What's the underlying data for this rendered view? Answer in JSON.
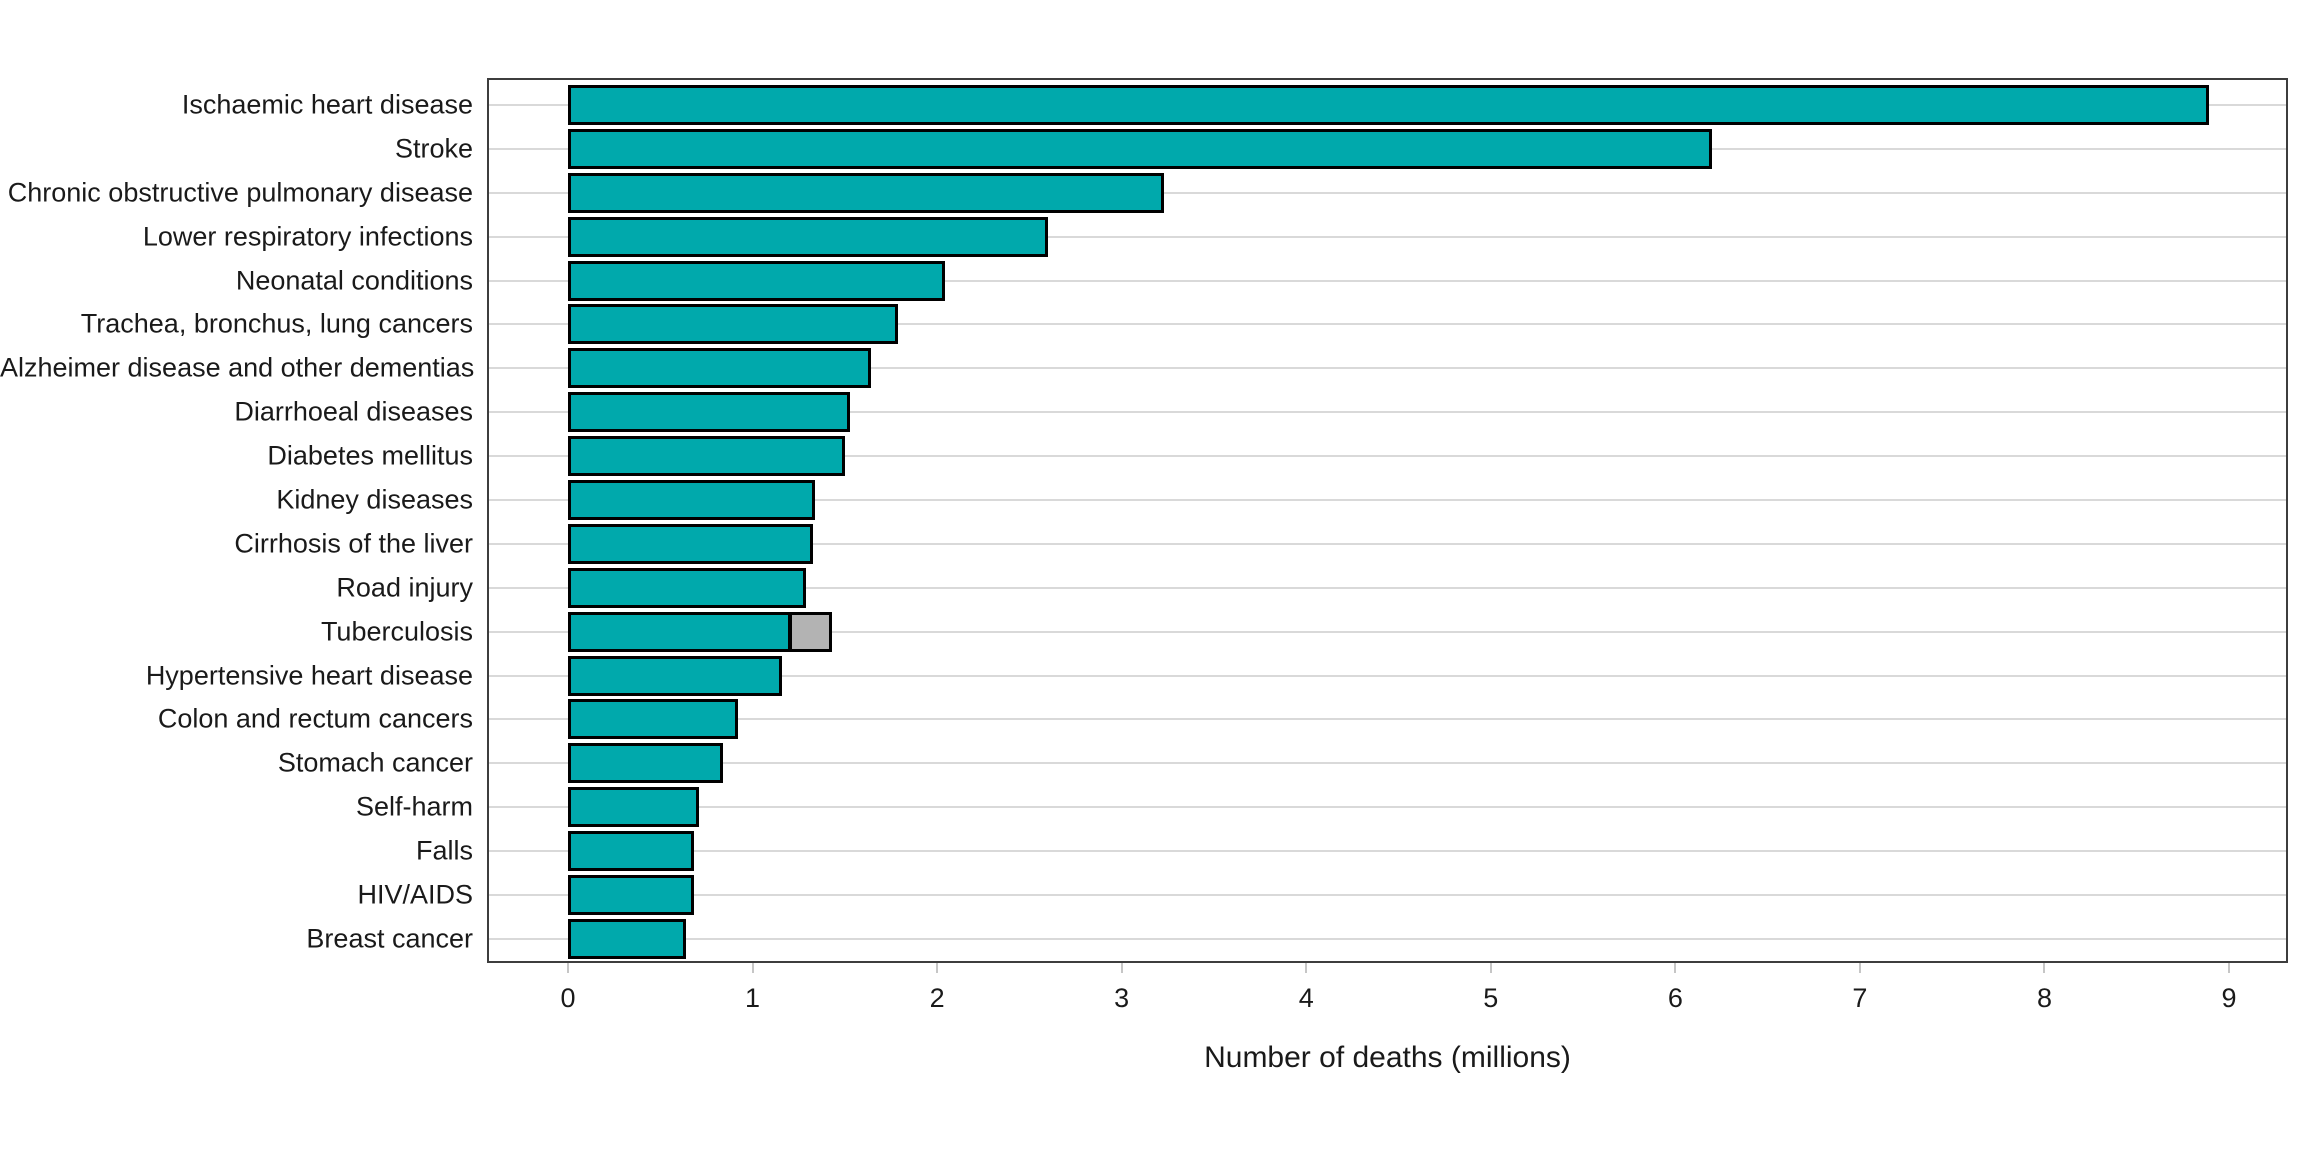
{
  "chart_data": {
    "type": "bar",
    "orientation": "horizontal",
    "title": "",
    "xlabel": "Number of deaths (millions)",
    "ylabel": "",
    "legend": "none",
    "grid": "horizontal category gridlines only",
    "xlim": [
      -0.44,
      9.33
    ],
    "x_ticks": [
      "0",
      "1",
      "2",
      "3",
      "4",
      "5",
      "6",
      "7",
      "8",
      "9"
    ],
    "bar_color": "#00A9AC",
    "bar_border_color": "#000000",
    "secondary_color": "#B3B3B3",
    "gridline_color": "#D9D9D9",
    "panel_border_color": "#3D3D3D",
    "tick_color": "#C6C6C6",
    "text_color": "#1A1A1A",
    "categories": [
      "Ischaemic heart disease",
      "Stroke",
      "Chronic obstructive pulmonary disease",
      "Lower respiratory infections",
      "Neonatal conditions",
      "Trachea, bronchus, lung cancers",
      "Alzheimer disease and other dementias",
      "Diarrhoeal diseases",
      "Diabetes mellitus",
      "Kidney diseases",
      "Cirrhosis of the liver",
      "Road injury",
      "Tuberculosis",
      "Hypertensive heart disease",
      "Colon and rectum cancers",
      "Stomach cancer",
      "Self-harm",
      "Falls",
      "HIV/AIDS",
      "Breast cancer"
    ],
    "values": [
      8.89,
      6.2,
      3.23,
      2.6,
      2.04,
      1.79,
      1.64,
      1.53,
      1.5,
      1.34,
      1.33,
      1.29,
      1.21,
      1.16,
      0.92,
      0.84,
      0.71,
      0.68,
      0.68,
      0.64
    ],
    "secondary_segment": {
      "category": "Tuberculosis",
      "from": 1.21,
      "to": 1.43,
      "color": "#B3B3B3"
    }
  }
}
